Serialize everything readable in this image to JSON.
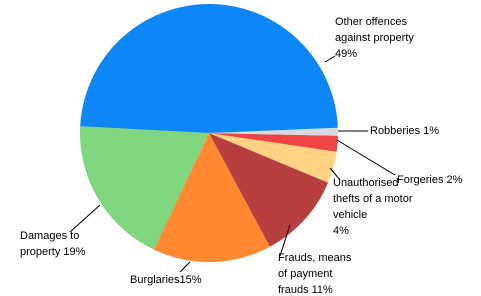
{
  "chart_data": {
    "type": "pie",
    "categories": [
      "Other offences against property",
      "Robberies",
      "Forgeries",
      "Unauthorised thefts of a motor vehicle",
      "Frauds, means of payment frauds",
      "Burglaries",
      "Damages to property"
    ],
    "values": [
      49,
      1,
      2,
      4,
      11,
      15,
      19
    ],
    "value_labels": [
      "49%",
      "1%",
      "2%",
      "4%",
      "11%",
      "15%",
      "19%"
    ],
    "colors": [
      "#0f86f5",
      "#d4dbe2",
      "#f04444",
      "#ffd383",
      "#b83f3f",
      "#ff8830",
      "#80d67f"
    ]
  }
}
